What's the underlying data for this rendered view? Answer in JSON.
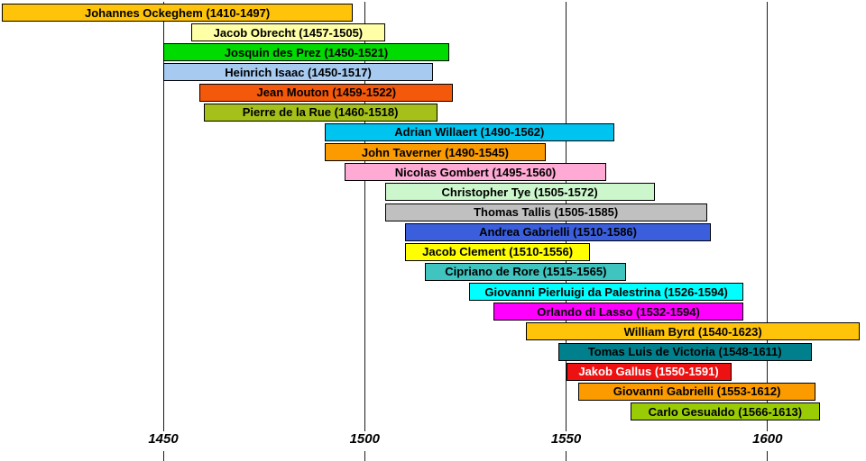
{
  "chart_data": {
    "type": "bar",
    "variant": "horizontal-timeline",
    "title": "",
    "xlabel": "",
    "ylabel": "",
    "grid": true,
    "background": "#FFFFFF",
    "axis_color": "#1C1C1C",
    "x_ticks": [
      1450,
      1500,
      1550,
      1600
    ],
    "x_range": [
      1409,
      1624
    ],
    "bars": [
      {
        "name": "Johannes Ockeghem",
        "born": 1410,
        "died": 1497,
        "label": "Johannes Ockeghem (1410-1497)",
        "color": "#FFC40A",
        "text_color": "#000000"
      },
      {
        "name": "Jacob Obrecht",
        "born": 1457,
        "died": 1505,
        "label": "Jacob Obrecht (1457-1505)",
        "color": "#FFFFA6",
        "text_color": "#000000"
      },
      {
        "name": "Josquin des Prez",
        "born": 1450,
        "died": 1521,
        "label": "Josquin des Prez (1450-1521)",
        "color": "#00DB00",
        "text_color": "#000000"
      },
      {
        "name": "Heinrich Isaac",
        "born": 1450,
        "died": 1517,
        "label": "Heinrich Isaac (1450-1517)",
        "color": "#A6CAF0",
        "text_color": "#000000"
      },
      {
        "name": "Jean Mouton",
        "born": 1459,
        "died": 1522,
        "label": "Jean Mouton (1459-1522)",
        "color": "#F4580A",
        "text_color": "#000000"
      },
      {
        "name": "Pierre de la Rue",
        "born": 1460,
        "died": 1518,
        "label": "Pierre de la Rue (1460-1518)",
        "color": "#A4C019",
        "text_color": "#000000"
      },
      {
        "name": "Adrian Willaert",
        "born": 1490,
        "died": 1562,
        "label": "Adrian Willaert (1490-1562)",
        "color": "#00C4F0",
        "text_color": "#000000"
      },
      {
        "name": "John Taverner",
        "born": 1490,
        "died": 1545,
        "label": "John Taverner (1490-1545)",
        "color": "#FB9B00",
        "text_color": "#000000"
      },
      {
        "name": "Nicolas Gombert",
        "born": 1495,
        "died": 1560,
        "label": "Nicolas Gombert (1495-1560)",
        "color": "#FFAAD5",
        "text_color": "#000000"
      },
      {
        "name": "Christopher Tye",
        "born": 1505,
        "died": 1572,
        "label": "Christopher Tye (1505-1572)",
        "color": "#CCF7CC",
        "text_color": "#000000"
      },
      {
        "name": "Thomas Tallis",
        "born": 1505,
        "died": 1585,
        "label": "Thomas Tallis (1505-1585)",
        "color": "#C0C0C0",
        "text_color": "#000000"
      },
      {
        "name": "Andrea Gabrielli",
        "born": 1510,
        "died": 1586,
        "label": "Andrea Gabrielli (1510-1586)",
        "color": "#3B5EDC",
        "text_color": "#000000"
      },
      {
        "name": "Jacob Clement",
        "born": 1510,
        "died": 1556,
        "label": "Jacob Clement (1510-1556)",
        "color": "#FFFF00",
        "text_color": "#000000"
      },
      {
        "name": "Cipriano de Rore",
        "born": 1515,
        "died": 1565,
        "label": "Cipriano de Rore (1515-1565)",
        "color": "#3FC4C0",
        "text_color": "#000000"
      },
      {
        "name": "Giovanni Pierluigi da Palestrina",
        "born": 1526,
        "died": 1594,
        "label": "Giovanni Pierluigi da Palestrina (1526-1594)",
        "color": "#00FFFF",
        "text_color": "#000000"
      },
      {
        "name": "Orlando di Lasso",
        "born": 1532,
        "died": 1594,
        "label": "Orlando di Lasso (1532-1594)",
        "color": "#FF00FF",
        "text_color": "#000000"
      },
      {
        "name": "William Byrd",
        "born": 1540,
        "died": 1623,
        "label": "William Byrd (1540-1623)",
        "color": "#FFC40A",
        "text_color": "#000000"
      },
      {
        "name": "Tomas Luis de Victoria",
        "born": 1548,
        "died": 1611,
        "label": "Tomas Luis de Victoria (1548-1611)",
        "color": "#00808C",
        "text_color": "#000000"
      },
      {
        "name": "Jakob Gallus",
        "born": 1550,
        "died": 1591,
        "label": "Jakob Gallus (1550-1591)",
        "color": "#EE1111",
        "text_color": "#FFFFFF"
      },
      {
        "name": "Giovanni Gabrielli",
        "born": 1553,
        "died": 1612,
        "label": "Giovanni Gabrielli (1553-1612)",
        "color": "#FB9B00",
        "text_color": "#000000"
      },
      {
        "name": "Carlo Gesualdo",
        "born": 1566,
        "died": 1613,
        "label": "Carlo Gesualdo (1566-1613)",
        "color": "#9ACC05",
        "text_color": "#000000"
      }
    ]
  }
}
